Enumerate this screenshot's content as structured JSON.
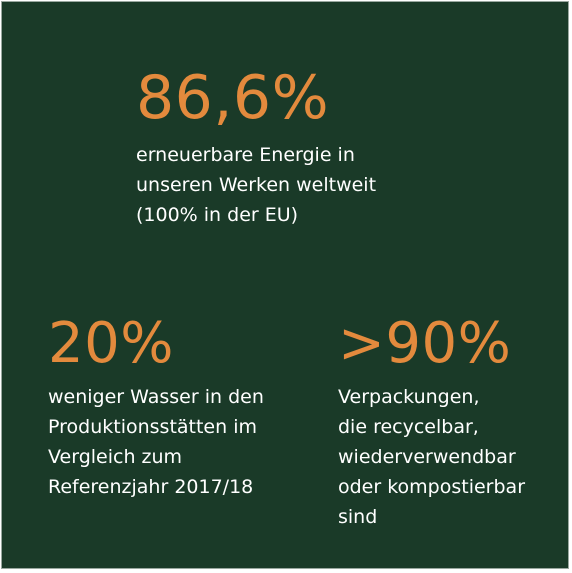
{
  "stats": [
    {
      "value": "86,6%",
      "lines": [
        "erneuerbare Energie in",
        "unseren Werken weltweit",
        "(100% in der EU)"
      ]
    },
    {
      "value": "20%",
      "lines": [
        "weniger Wasser in den",
        "Produktionsstätten im",
        "Vergleich zum",
        "Referenzjahr 2017/18"
      ]
    },
    {
      "value": ">90%",
      "lines": [
        "Verpackungen,",
        "die recycelbar,",
        "wiederverwendbar",
        "oder kompostierbar",
        "sind"
      ]
    }
  ],
  "colors": {
    "background": "#1a3a28",
    "accent": "#e38a3d",
    "text": "#ffffff"
  }
}
